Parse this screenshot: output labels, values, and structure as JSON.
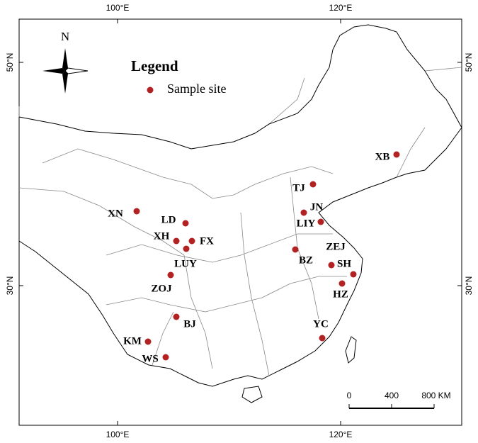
{
  "north": "N",
  "legend": {
    "title": "Legend",
    "item": "Sample site"
  },
  "longitude_labels": [
    "100°E",
    "120°E"
  ],
  "latitude_labels": [
    "50°N",
    "30°N"
  ],
  "scale_bar": [
    "0",
    "400",
    "800 KM"
  ],
  "sites": [
    "XB",
    "TJ",
    "JN",
    "LIY",
    "XN",
    "LD",
    "XH",
    "FX",
    "LUY",
    "BZ",
    "ZEJ",
    "SH",
    "HZ",
    "ZOJ",
    "BJ",
    "KM",
    "WS",
    "YC"
  ]
}
